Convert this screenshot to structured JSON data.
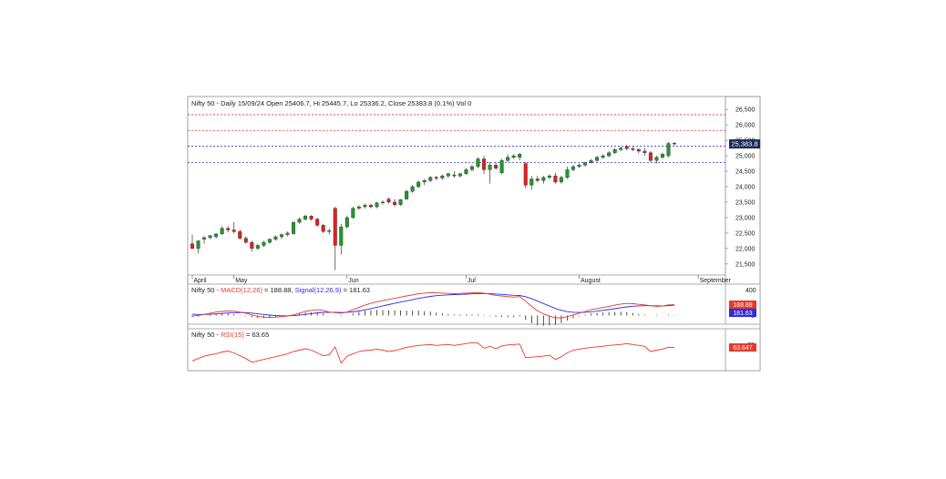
{
  "chart_data": [
    {
      "type": "candlestick",
      "title": "Nifty 50 - Daily 15/09/24 Open 25406.7, Hi 25445.7, Lo 25336.2, Close 25383.8 (0.1%) Vol 0",
      "yticks": [
        "26,500",
        "26,000",
        "25,500",
        "25,000",
        "24,500",
        "24,000",
        "23,500",
        "23,000",
        "22,500",
        "22,000",
        "21,500"
      ],
      "ytick_values": [
        26500,
        26000,
        25500,
        25000,
        24500,
        24000,
        23500,
        23000,
        22500,
        22000,
        21500
      ],
      "ylim": [
        21200,
        26800
      ],
      "xlabels": [
        "April",
        "May",
        "Jun",
        "Jul",
        "August",
        "September"
      ],
      "xlabel_index": [
        0,
        7,
        26,
        46,
        65,
        85
      ],
      "last_price_label": "25,383.8",
      "last_price": 25383.8,
      "hlines": [
        {
          "value": 26330,
          "color": "#e8382c",
          "style": "dashed"
        },
        {
          "value": 25820,
          "color": "#e8382c",
          "style": "dashed"
        },
        {
          "value": 25310,
          "color": "#3d3dd6",
          "style": "dashed"
        },
        {
          "value": 24780,
          "color": "#3d3dd6",
          "style": "dashed"
        }
      ],
      "candles": [
        [
          22150,
          22450,
          21980,
          22000
        ],
        [
          22000,
          22200,
          21850,
          22250
        ],
        [
          22300,
          22400,
          22150,
          22350
        ],
        [
          22350,
          22420,
          22300,
          22420
        ],
        [
          22380,
          22500,
          22320,
          22470
        ],
        [
          22470,
          22720,
          22440,
          22650
        ],
        [
          22650,
          22720,
          22520,
          22600
        ],
        [
          22600,
          22850,
          22480,
          22550
        ],
        [
          22550,
          22620,
          22280,
          22330
        ],
        [
          22330,
          22400,
          22150,
          22200
        ],
        [
          22200,
          22250,
          21900,
          22000
        ],
        [
          22000,
          22150,
          21950,
          22100
        ],
        [
          22100,
          22250,
          22050,
          22200
        ],
        [
          22200,
          22320,
          22150,
          22300
        ],
        [
          22300,
          22420,
          22250,
          22380
        ],
        [
          22380,
          22480,
          22300,
          22450
        ],
        [
          22450,
          22550,
          22400,
          22500
        ],
        [
          22480,
          22870,
          22450,
          22850
        ],
        [
          22850,
          23000,
          22800,
          22950
        ],
        [
          22950,
          23100,
          22900,
          23050
        ],
        [
          23050,
          23080,
          22900,
          22950
        ],
        [
          22950,
          23000,
          22700,
          22750
        ],
        [
          22750,
          22800,
          22500,
          22550
        ],
        [
          22550,
          22650,
          22450,
          22580
        ],
        [
          23300,
          23350,
          21300,
          22100
        ],
        [
          22100,
          22800,
          21800,
          22700
        ],
        [
          22700,
          23050,
          22650,
          23000
        ],
        [
          23000,
          23350,
          22950,
          23300
        ],
        [
          23300,
          23400,
          23250,
          23350
        ],
        [
          23350,
          23450,
          23300,
          23400
        ],
        [
          23400,
          23450,
          23300,
          23350
        ],
        [
          23350,
          23500,
          23300,
          23480
        ],
        [
          23480,
          23560,
          23420,
          23500
        ],
        [
          23600,
          23650,
          23450,
          23500
        ],
        [
          23500,
          23600,
          23350,
          23420
        ],
        [
          23420,
          23600,
          23380,
          23580
        ],
        [
          23600,
          23900,
          23580,
          23850
        ],
        [
          23850,
          24050,
          23800,
          24000
        ],
        [
          24000,
          24200,
          23950,
          24150
        ],
        [
          24150,
          24250,
          24050,
          24200
        ],
        [
          24200,
          24350,
          24150,
          24300
        ],
        [
          24300,
          24350,
          24200,
          24280
        ],
        [
          24280,
          24400,
          24220,
          24350
        ],
        [
          24350,
          24450,
          24280,
          24420
        ],
        [
          24380,
          24500,
          24300,
          24350
        ],
        [
          24350,
          24450,
          24300,
          24420
        ],
        [
          24420,
          24600,
          24380,
          24550
        ],
        [
          24550,
          24700,
          24500,
          24650
        ],
        [
          24650,
          24950,
          24600,
          24900
        ],
        [
          24900,
          25000,
          24400,
          24550
        ],
        [
          24550,
          24800,
          24100,
          24700
        ],
        [
          24700,
          24800,
          24550,
          24600
        ],
        [
          24450,
          24900,
          24400,
          24850
        ],
        [
          24850,
          25050,
          24800,
          24950
        ],
        [
          24950,
          25050,
          24900,
          25000
        ],
        [
          24950,
          25100,
          24850,
          25050
        ],
        [
          24750,
          24800,
          23950,
          24050
        ],
        [
          24050,
          24350,
          23900,
          24250
        ],
        [
          24250,
          24350,
          24150,
          24200
        ],
        [
          24200,
          24350,
          24100,
          24300
        ],
        [
          24300,
          24400,
          24250,
          24350
        ],
        [
          24350,
          24450,
          24100,
          24150
        ],
        [
          24150,
          24350,
          24100,
          24300
        ],
        [
          24300,
          24650,
          24250,
          24550
        ],
        [
          24550,
          24700,
          24500,
          24650
        ],
        [
          24650,
          24750,
          24600,
          24700
        ],
        [
          24700,
          24800,
          24650,
          24780
        ],
        [
          24780,
          24900,
          24750,
          24850
        ],
        [
          24850,
          25000,
          24800,
          24950
        ],
        [
          24950,
          25050,
          24900,
          25000
        ],
        [
          25000,
          25150,
          24950,
          25100
        ],
        [
          25100,
          25250,
          25050,
          25200
        ],
        [
          25200,
          25300,
          25150,
          25250
        ],
        [
          25300,
          25350,
          25180,
          25230
        ],
        [
          25230,
          25300,
          25150,
          25200
        ],
        [
          25200,
          25250,
          25080,
          25150
        ],
        [
          25150,
          25250,
          25000,
          25100
        ],
        [
          25100,
          25150,
          24800,
          24850
        ],
        [
          24850,
          25000,
          24750,
          24950
        ],
        [
          24950,
          25100,
          24900,
          25050
        ],
        [
          25000,
          25450,
          24950,
          25400
        ],
        [
          25406.7,
          25445.7,
          25336.2,
          25383.8
        ]
      ]
    },
    {
      "type": "line",
      "title_prefix": "Nifty 50 - ",
      "macd_label": "MACD(12,26)",
      "macd_value": " = 188.88, ",
      "signal_label": "Signal(12,26,9)",
      "signal_value": " = 181.63",
      "ytick_top": "400",
      "ytick_zero": "0",
      "ylim": [
        -120,
        420
      ],
      "macd_badge": "188.88",
      "signal_badge": "181.63",
      "macd_color": "#e8382c",
      "signal_color": "#2d2de0",
      "macd": [
        -10,
        0,
        20,
        40,
        60,
        70,
        80,
        75,
        60,
        40,
        10,
        -15,
        -30,
        -35,
        -30,
        -20,
        -10,
        10,
        40,
        70,
        90,
        100,
        90,
        60,
        50,
        40,
        60,
        100,
        140,
        180,
        210,
        240,
        260,
        280,
        300,
        320,
        340,
        360,
        380,
        390,
        400,
        395,
        390,
        385,
        380,
        385,
        390,
        395,
        400,
        390,
        370,
        350,
        340,
        330,
        320,
        330,
        250,
        160,
        80,
        30,
        -10,
        -40,
        -40,
        -20,
        10,
        40,
        70,
        100,
        120,
        140,
        160,
        180,
        200,
        210,
        205,
        195,
        185,
        170,
        160,
        165,
        185,
        188.88
      ],
      "signal": [
        20,
        18,
        18,
        22,
        28,
        36,
        44,
        50,
        52,
        50,
        42,
        30,
        18,
        7,
        -1,
        -5,
        -6,
        -3,
        6,
        19,
        33,
        46,
        55,
        56,
        55,
        52,
        54,
        63,
        78,
        98,
        120,
        144,
        167,
        190,
        212,
        234,
        255,
        276,
        297,
        315,
        332,
        345,
        354,
        360,
        364,
        368,
        372,
        377,
        382,
        383,
        380,
        374,
        367,
        360,
        352,
        348,
        328,
        295,
        252,
        208,
        164,
        123,
        90,
        68,
        56,
        53,
        56,
        65,
        76,
        89,
        103,
        119,
        135,
        150,
        161,
        168,
        171,
        171,
        169,
        168,
        171,
        181.63
      ],
      "histogram": [
        -30,
        -18,
        2,
        18,
        32,
        34,
        36,
        25,
        8,
        -10,
        -32,
        -45,
        -48,
        -42,
        -29,
        -15,
        -4,
        13,
        34,
        51,
        57,
        54,
        35,
        4,
        -5,
        -12,
        6,
        37,
        62,
        82,
        90,
        96,
        93,
        90,
        88,
        86,
        85,
        84,
        83,
        75,
        68,
        50,
        36,
        25,
        16,
        17,
        18,
        18,
        18,
        7,
        -10,
        -24,
        -27,
        -30,
        -32,
        -18,
        -78,
        -135,
        -172,
        -178,
        -174,
        -163,
        -130,
        -88,
        -46,
        -13,
        14,
        35,
        44,
        51,
        57,
        61,
        65,
        60,
        44,
        27,
        14,
        -1,
        -9,
        -3,
        14,
        7
      ]
    },
    {
      "type": "line",
      "title_prefix": "Nifty 50 - ",
      "rsi_label": "RSI(15)",
      "rsi_value": " = 63.65",
      "ytick_70": "70",
      "ylim": [
        20,
        90
      ],
      "rsi_badge": "63.647",
      "rsi_color": "#e8382c",
      "rsi": [
        35,
        40,
        45,
        48,
        50,
        54,
        56,
        52,
        46,
        40,
        32,
        35,
        38,
        41,
        44,
        47,
        50,
        55,
        58,
        61,
        58,
        52,
        46,
        48,
        65,
        30,
        45,
        50,
        55,
        57,
        58,
        60,
        58,
        55,
        57,
        60,
        64,
        66,
        68,
        69,
        70,
        68,
        69,
        70,
        68,
        70,
        72,
        74,
        73,
        62,
        66,
        61,
        67,
        69,
        70,
        71,
        42,
        43,
        44,
        45,
        47,
        38,
        44,
        52,
        58,
        60,
        62,
        64,
        65,
        66,
        68,
        69,
        70,
        72,
        70,
        68,
        66,
        55,
        58,
        60,
        64,
        63.65
      ]
    }
  ]
}
